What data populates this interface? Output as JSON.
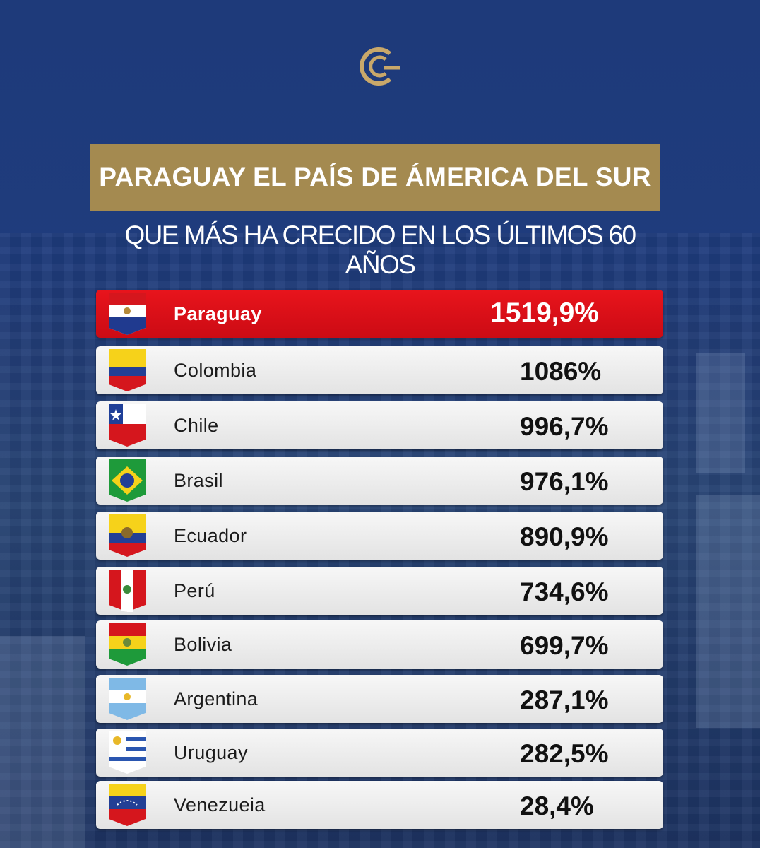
{
  "header": {
    "title": "PARAGUAY EL PAÍS DE ÁMERICA DEL SUR",
    "subtitle": "QUE MÁS HA CRECIDO EN LOS ÚLTIMOS 60 AÑOS"
  },
  "colors": {
    "background": "#1f3a78",
    "title_box": "#a48a50",
    "highlight_row": "#e0121a",
    "row": "#eeeeee"
  },
  "chart_data": {
    "type": "table",
    "title": "PARAGUAY EL PAÍS DE ÁMERICA DEL SUR",
    "subtitle": "QUE MÁS HA CRECIDO EN LOS ÚLTIMOS 60 AÑOS",
    "rows": [
      {
        "country": "Paraguay",
        "value": 1519.9,
        "label": "1519,9%",
        "flag": "paraguay-flag-icon",
        "highlight": true
      },
      {
        "country": "Colombia",
        "value": 1086,
        "label": "1086%",
        "flag": "colombia-flag-icon"
      },
      {
        "country": "Chile",
        "value": 996.7,
        "label": "996,7%",
        "flag": "chile-flag-icon"
      },
      {
        "country": "Brasil",
        "value": 976.1,
        "label": "976,1%",
        "flag": "brazil-flag-icon"
      },
      {
        "country": "Ecuador",
        "value": 890.9,
        "label": "890,9%",
        "flag": "ecuador-flag-icon"
      },
      {
        "country": "Perú",
        "value": 734.6,
        "label": "734,6%",
        "flag": "peru-flag-icon"
      },
      {
        "country": "Bolivia",
        "value": 699.7,
        "label": "699,7%",
        "flag": "bolivia-flag-icon"
      },
      {
        "country": "Argentina",
        "value": 287.1,
        "label": "287,1%",
        "flag": "argentina-flag-icon"
      },
      {
        "country": "Uruguay",
        "value": 282.5,
        "label": "282,5%",
        "flag": "uruguay-flag-icon"
      },
      {
        "country": "Venezueia",
        "value": 28.4,
        "label": "28,4%",
        "flag": "venezuela-flag-icon"
      }
    ]
  }
}
